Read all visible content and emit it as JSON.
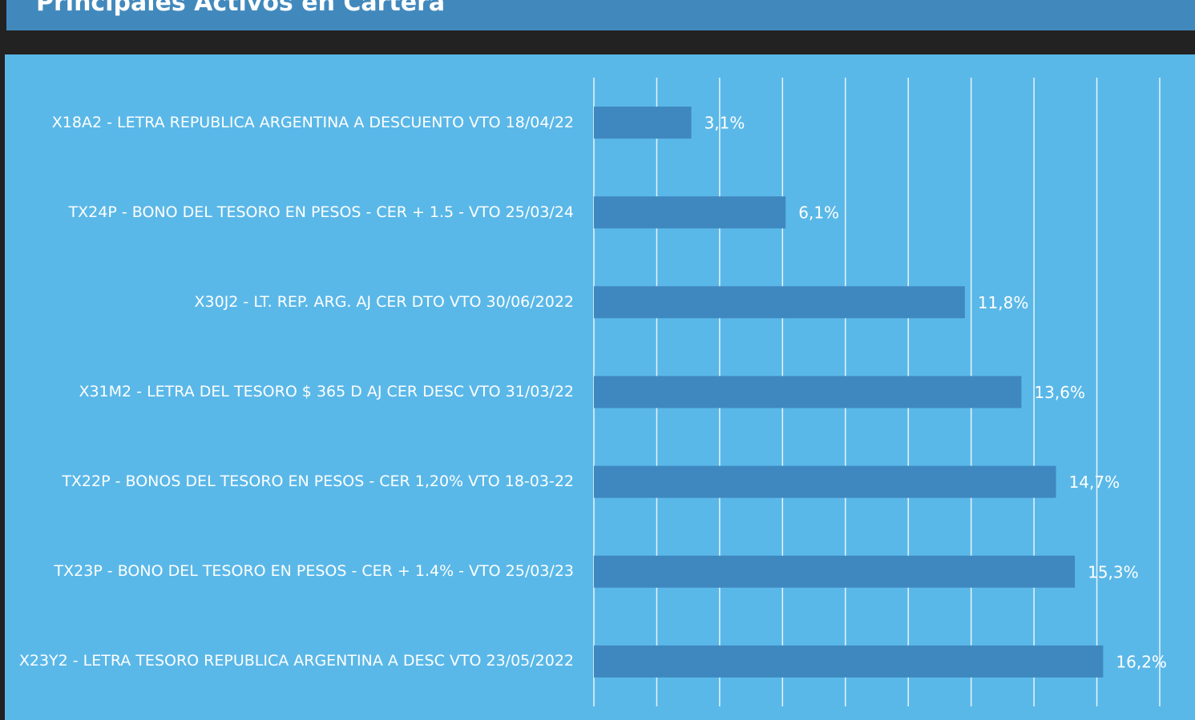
{
  "chart_data": {
    "type": "bar",
    "orientation": "horizontal",
    "title": "Principales Activos en Cartera",
    "categories": [
      "X18A2 - LETRA REPUBLICA ARGENTINA A DESCUENTO VTO 18/04/22",
      "TX24P - BONO DEL TESORO EN PESOS - CER + 1.5 - VTO 25/03/24",
      "X30J2 - LT. REP. ARG. AJ CER DTO VTO 30/06/2022",
      "X31M2 - LETRA DEL TESORO $ 365 D AJ CER DESC VTO 31/03/22",
      "TX22P - BONOS DEL TESORO EN PESOS - CER 1,20% VTO 18-03-22",
      "TX23P - BONO DEL TESORO EN PESOS - CER + 1.4% - VTO 25/03/23",
      "X23Y2 - LETRA TESORO REPUBLICA ARGENTINA A DESC VTO 23/05/2022"
    ],
    "values": [
      3.1,
      6.1,
      11.8,
      13.6,
      14.7,
      15.3,
      16.2
    ],
    "value_labels": [
      "3,1%",
      "6,1%",
      "11,8%",
      "13,6%",
      "14,7%",
      "15,3%",
      "16,2%"
    ],
    "color": "#3f88bf",
    "xlim": [
      0,
      18
    ],
    "xticks": [
      0,
      2,
      4,
      6,
      8,
      10,
      12,
      14,
      16,
      18
    ],
    "grid": true
  }
}
